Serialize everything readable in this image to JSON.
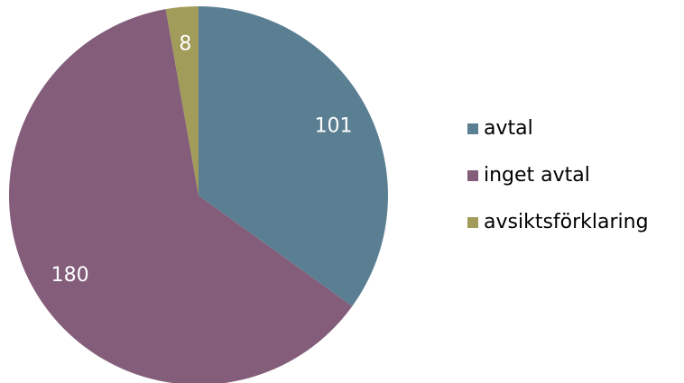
{
  "chart_data": {
    "type": "pie",
    "categories": [
      "avtal",
      "inget avtal",
      "avsiktsförklaring"
    ],
    "values": [
      101,
      180,
      8
    ],
    "colors": [
      "#5b7f92",
      "#835d7a",
      "#a29c5a"
    ],
    "legend": "right"
  }
}
